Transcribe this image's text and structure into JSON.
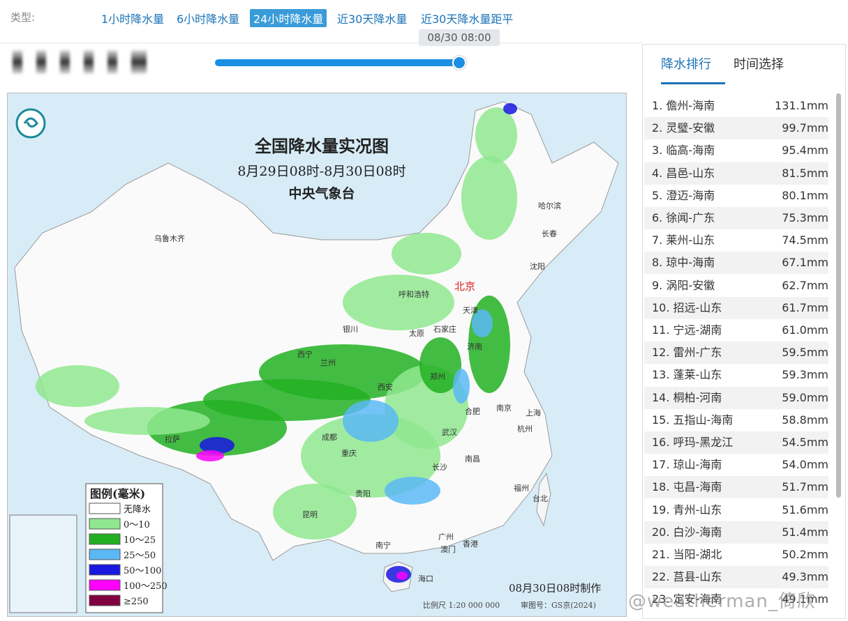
{
  "type_label": "类型:",
  "tabs": {
    "items": [
      "1小时降水量",
      "6小时降水量",
      "24小时降水量",
      "近30天降水量",
      "近30天降水量距平"
    ],
    "active": 2
  },
  "slider": {
    "time_label": "08/30 08:00"
  },
  "map": {
    "title": "全国降水量实况图",
    "subtitle": "8月29日08时-8月30日08时",
    "issuer": "中央气象台",
    "legend_title": "图例(毫米)",
    "legend": [
      {
        "label": "无降水",
        "color": "#ffffff"
      },
      {
        "label": "0～10",
        "color": "#8fe88f"
      },
      {
        "label": "10～25",
        "color": "#22b022"
      },
      {
        "label": "25～50",
        "color": "#5ab8f5"
      },
      {
        "label": "50～100",
        "color": "#1818e0"
      },
      {
        "label": "100～250",
        "color": "#ff00ff"
      },
      {
        "label": "≥250",
        "color": "#800040"
      }
    ],
    "cities": [
      "乌鲁木齐",
      "哈尔滨",
      "长春",
      "沈阳",
      "呼和浩特",
      "北京",
      "天津",
      "银川",
      "太原",
      "石家庄",
      "济南",
      "西宁",
      "兰州",
      "西安",
      "郑州",
      "合肥",
      "南京",
      "上海",
      "杭州",
      "拉萨",
      "成都",
      "武汉",
      "重庆",
      "长沙",
      "南昌",
      "福州",
      "台北",
      "贵阳",
      "昆明",
      "南宁",
      "广州",
      "澳门",
      "香港",
      "海口"
    ],
    "made": "08月30日08时制作",
    "scale": "比例尺 1:20 000 000",
    "approval": "审图号：GS京(2024)"
  },
  "sidebar": {
    "tabs": [
      "降水排行",
      "时间选择"
    ],
    "active": 0
  },
  "ranking": [
    [
      "1. 儋州-海南",
      "131.1mm"
    ],
    [
      "2. 灵璧-安徽",
      "99.7mm"
    ],
    [
      "3. 临高-海南",
      "95.4mm"
    ],
    [
      "4. 昌邑-山东",
      "81.5mm"
    ],
    [
      "5. 澄迈-海南",
      "80.1mm"
    ],
    [
      "6. 徐闻-广东",
      "75.3mm"
    ],
    [
      "7. 莱州-山东",
      "74.5mm"
    ],
    [
      "8. 琼中-海南",
      "67.1mm"
    ],
    [
      "9. 涡阳-安徽",
      "62.7mm"
    ],
    [
      "10. 招远-山东",
      "61.7mm"
    ],
    [
      "11. 宁远-湖南",
      "61.0mm"
    ],
    [
      "12. 雷州-广东",
      "59.5mm"
    ],
    [
      "13. 蓬莱-山东",
      "59.3mm"
    ],
    [
      "14. 桐柏-河南",
      "59.0mm"
    ],
    [
      "15. 五指山-海南",
      "58.8mm"
    ],
    [
      "16. 呼玛-黑龙江",
      "54.5mm"
    ],
    [
      "17. 琼山-海南",
      "54.0mm"
    ],
    [
      "18. 屯昌-海南",
      "51.7mm"
    ],
    [
      "19. 青州-山东",
      "51.6mm"
    ],
    [
      "20. 白沙-海南",
      "51.4mm"
    ],
    [
      "21. 当阳-湖北",
      "50.2mm"
    ],
    [
      "22. 莒县-山东",
      "49.3mm"
    ],
    [
      "23. 定安-海南",
      "49.1mm"
    ]
  ],
  "watermark": "@weatherman_倚欣"
}
